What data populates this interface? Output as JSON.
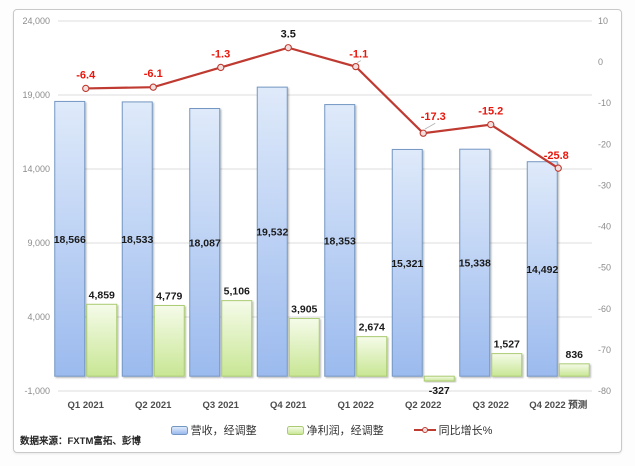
{
  "chart_data": {
    "type": "bar",
    "subtype": "grouped bars with secondary-axis line (combo)",
    "categories": [
      "Q1 2021",
      "Q2 2021",
      "Q3 2021",
      "Q4 2021",
      "Q1 2022",
      "Q2 2022",
      "Q3 2022",
      "Q4 2022 预测"
    ],
    "series": [
      {
        "name": "营收，经调整",
        "type": "bar",
        "axis": "left",
        "color_key": "revenue",
        "values": [
          18566,
          18533,
          18087,
          19532,
          18353,
          15321,
          15338,
          14492
        ]
      },
      {
        "name": "净利润，经调整",
        "type": "bar",
        "axis": "left",
        "color_key": "profit",
        "values": [
          4859,
          4779,
          5106,
          3905,
          2674,
          -327,
          1527,
          836
        ]
      },
      {
        "name": "同比增长%",
        "type": "line",
        "axis": "right",
        "color_key": "growth",
        "values": [
          -6.4,
          -6.1,
          -1.3,
          3.5,
          -1.1,
          -17.3,
          -15.2,
          -25.8
        ]
      }
    ],
    "left_axis": {
      "min": -1000,
      "max": 24000,
      "tick_values": [
        24000,
        19000,
        14000,
        9000,
        4000,
        -1000
      ]
    },
    "right_axis": {
      "min": -80,
      "max": 10,
      "tick_values": [
        10,
        0,
        -10,
        -20,
        -30,
        -40,
        -50,
        -60,
        -70,
        -80
      ]
    },
    "grid": true,
    "legend_position": "bottom",
    "title": "",
    "xlabel": "",
    "ylabel": ""
  },
  "source_note": "数据来源：FXTM富拓、彭博",
  "colors": {
    "revenue_light": "#dfeafa",
    "revenue_dark": "#9bbaee",
    "revenue_border": "#7396c2",
    "profit_light": "#f5fbe9",
    "profit_dark": "#c8e694",
    "profit_border": "#aacb72",
    "line": "#bf3a31",
    "marker_fill": "#f3e0de",
    "label_negative": "#e8160c",
    "label_positive": "#1a1a1a",
    "gridline": "#dcdcdc",
    "leader": "#b0b0b0"
  }
}
